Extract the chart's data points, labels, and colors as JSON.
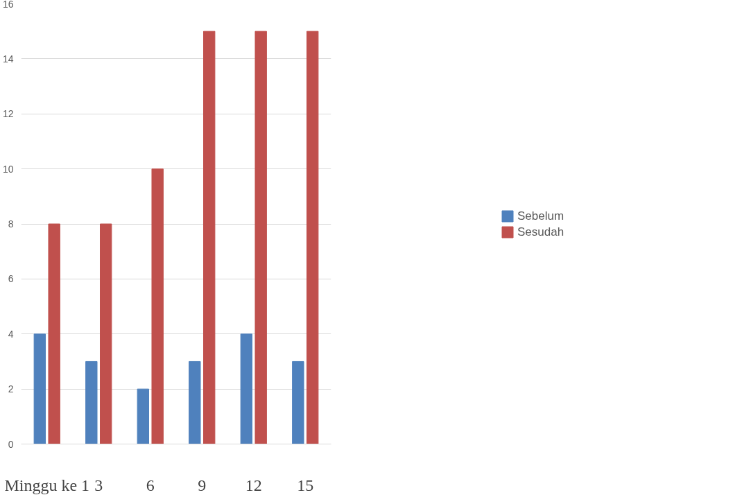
{
  "chart_data": {
    "type": "bar",
    "categories": [
      "Minggu ke 1",
      "3",
      "6",
      "9",
      "12",
      "15"
    ],
    "series": [
      {
        "name": "Sebelum",
        "color": "#4f81bd",
        "values": [
          4,
          3,
          2,
          3,
          4,
          3
        ]
      },
      {
        "name": "Sesudah",
        "color": "#c0504d",
        "values": [
          8,
          8,
          10,
          15,
          15,
          15
        ]
      }
    ],
    "ylim": [
      0,
      16
    ],
    "yticks": [
      0,
      2,
      4,
      6,
      8,
      10,
      12,
      14,
      16
    ],
    "grid": "y",
    "legend": "right"
  }
}
